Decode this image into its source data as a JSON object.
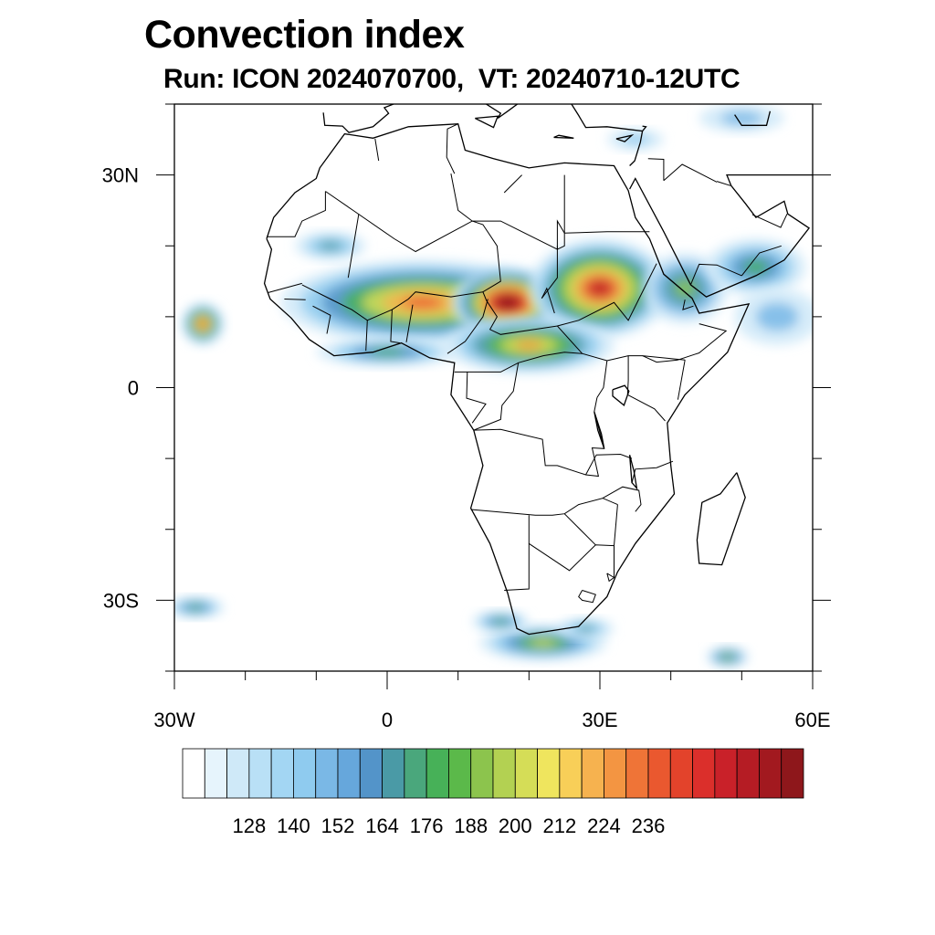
{
  "title": "Convection index",
  "subtitle": "Run: ICON 2024070700,  VT: 20240710-12UTC",
  "map": {
    "region": "Africa",
    "lon_range": [
      -30,
      60
    ],
    "lat_range": [
      -40,
      40
    ],
    "lat_ticks": [
      {
        "lat": 30,
        "label": "30N"
      },
      {
        "lat": 0,
        "label": "0"
      },
      {
        "lat": -30,
        "label": "30S"
      }
    ],
    "lon_ticks": [
      {
        "lon": -30,
        "label": "30W"
      },
      {
        "lon": 0,
        "label": "0"
      },
      {
        "lon": 30,
        "label": "30E"
      },
      {
        "lon": 60,
        "label": "60E"
      }
    ]
  },
  "colorbar": {
    "labels": [
      "128",
      "140",
      "152",
      "164",
      "176",
      "188",
      "200",
      "212",
      "224",
      "236"
    ],
    "colors": [
      "#ffffff",
      "#e6f4fc",
      "#cfe9f8",
      "#b9e0f6",
      "#a3d6f3",
      "#8fcbef",
      "#7ab8e6",
      "#66a7dc",
      "#5394c9",
      "#4a9aa6",
      "#4aa77c",
      "#47b158",
      "#5bb94a",
      "#8cc44d",
      "#b3d152",
      "#d5dd57",
      "#efe55e",
      "#f8cf58",
      "#f6b24f",
      "#f39542",
      "#ef7437",
      "#ea582f",
      "#e3432b",
      "#db2f2b",
      "#c92129",
      "#b51c24",
      "#a2191f",
      "#8e171b"
    ]
  },
  "convection_areas": [
    {
      "lon": 5,
      "lat": 12,
      "rlon": 20,
      "rlat": 6,
      "level": 0.55
    },
    {
      "lon": 17,
      "lat": 12,
      "rlon": 8,
      "rlat": 5,
      "level": 0.8
    },
    {
      "lon": 30,
      "lat": 14,
      "rlon": 10,
      "rlat": 7,
      "level": 0.65
    },
    {
      "lon": 20,
      "lat": 6,
      "rlon": 12,
      "rlat": 4,
      "level": 0.5
    },
    {
      "lon": -26,
      "lat": 9,
      "rlon": 3,
      "rlat": 3,
      "level": 0.6
    },
    {
      "lon": 0,
      "lat": 5,
      "rlon": 10,
      "rlat": 2,
      "level": 0.3
    },
    {
      "lon": 42,
      "lat": 14,
      "rlon": 6,
      "rlat": 5,
      "level": 0.35
    },
    {
      "lon": 52,
      "lat": 17,
      "rlon": 7,
      "rlat": 4,
      "level": 0.3
    },
    {
      "lon": 55,
      "lat": 10,
      "rlon": 6,
      "rlat": 4,
      "level": 0.2
    },
    {
      "lon": -8,
      "lat": 20,
      "rlon": 5,
      "rlat": 2,
      "level": 0.25
    },
    {
      "lon": 22,
      "lat": -36,
      "rlon": 9,
      "rlat": 2.5,
      "level": 0.4
    },
    {
      "lon": 16,
      "lat": -33,
      "rlon": 4,
      "rlat": 1.5,
      "level": 0.3
    },
    {
      "lon": 28,
      "lat": -34,
      "rlon": 4,
      "rlat": 1.5,
      "level": 0.25
    },
    {
      "lon": -27,
      "lat": -31,
      "rlon": 4,
      "rlat": 1.5,
      "level": 0.3
    },
    {
      "lon": 48,
      "lat": -38,
      "rlon": 3,
      "rlat": 1.5,
      "level": 0.35
    },
    {
      "lon": 50,
      "lat": 38,
      "rlon": 6,
      "rlat": 2,
      "level": 0.2
    },
    {
      "lon": 35,
      "lat": 35,
      "rlon": 4,
      "rlat": 1.5,
      "level": 0.15
    }
  ]
}
